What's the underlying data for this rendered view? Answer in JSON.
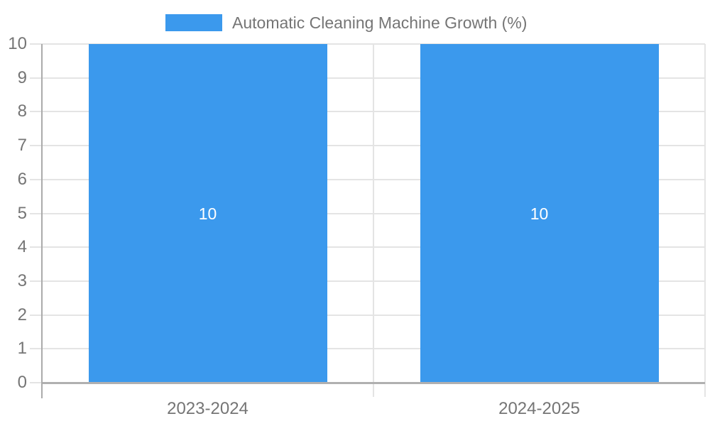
{
  "legend": {
    "label": "Automatic Cleaning Machine Growth (%)"
  },
  "chart_data": {
    "type": "bar",
    "title": "Automatic Cleaning Machine Growth (%)",
    "categories": [
      "2023-2024",
      "2024-2025"
    ],
    "series": [
      {
        "name": "Automatic Cleaning Machine Growth (%)",
        "values": [
          10,
          10
        ]
      }
    ],
    "bar_value_labels": [
      "10",
      "10"
    ],
    "xlabel": "",
    "ylabel": "",
    "ylim": [
      0,
      10
    ],
    "yticks": [
      0,
      1,
      2,
      3,
      4,
      5,
      6,
      7,
      8,
      9,
      10
    ],
    "grid": true,
    "legend_position": "top-center",
    "colors": {
      "bar": "#3B99ED",
      "bar_label_text": "#FFFFFF",
      "axis_text": "#757575",
      "axis_line": "#ABABAB",
      "baseline": "#B0B0B0",
      "gridline": "#E4E4E4",
      "background": "#FFFFFF"
    }
  }
}
